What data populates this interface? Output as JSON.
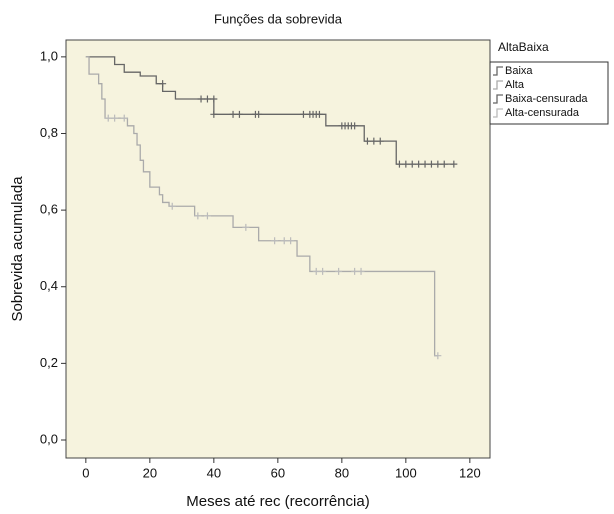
{
  "chart_data": {
    "type": "line",
    "title": "Funções da sobrevida",
    "x_label": "Meses até rec (recorrência)",
    "y_label": "Sobrevida acumulada",
    "legend_title": "AltaBaixa",
    "legend_position": "right",
    "xlim": [
      -6.2,
      126.3
    ],
    "ylim": [
      -0.047,
      1.044
    ],
    "xticks": [
      0,
      20,
      40,
      60,
      80,
      100,
      120
    ],
    "yticks": [
      {
        "value": 0,
        "label": "0,0"
      },
      {
        "value": 0.2,
        "label": "0,2"
      },
      {
        "value": 0.4,
        "label": "0,4"
      },
      {
        "value": 0.6,
        "label": "0,6"
      },
      {
        "value": 0.8,
        "label": "0,8"
      },
      {
        "value": 1,
        "label": "1,0"
      }
    ],
    "series": [
      {
        "name": "Baixa",
        "color": "#666666",
        "style": "step",
        "x": [
          0,
          9,
          12,
          17,
          22,
          24,
          28,
          40,
          75,
          87,
          97,
          115
        ],
        "values": [
          1,
          0.98,
          0.96,
          0.95,
          0.93,
          0.91,
          0.89,
          0.85,
          0.82,
          0.78,
          0.72,
          0.72
        ]
      },
      {
        "name": "Alta",
        "color": "#aaaaaa",
        "style": "step",
        "x": [
          0,
          1,
          4,
          5,
          6,
          13,
          15,
          16,
          17,
          18,
          20,
          23,
          24,
          26,
          34,
          46,
          54,
          66,
          70,
          109,
          110
        ],
        "values": [
          1,
          0.955,
          0.93,
          0.89,
          0.84,
          0.82,
          0.8,
          0.77,
          0.73,
          0.7,
          0.66,
          0.64,
          0.62,
          0.61,
          0.585,
          0.555,
          0.52,
          0.48,
          0.44,
          0.22,
          0.22
        ]
      },
      {
        "name": "Baixa-censurada",
        "color": "#666666",
        "style": "censored",
        "x": [
          24,
          36,
          38,
          40,
          40,
          46,
          48,
          53,
          54,
          68,
          70,
          71,
          72,
          73,
          80,
          81,
          82,
          83,
          84,
          88,
          90,
          92,
          98,
          100,
          102,
          104,
          106,
          108,
          110,
          112,
          115
        ],
        "values": [
          0.93,
          0.89,
          0.89,
          0.89,
          0.85,
          0.85,
          0.85,
          0.85,
          0.85,
          0.85,
          0.85,
          0.85,
          0.85,
          0.85,
          0.82,
          0.82,
          0.82,
          0.82,
          0.82,
          0.78,
          0.78,
          0.78,
          0.72,
          0.72,
          0.72,
          0.72,
          0.72,
          0.72,
          0.72,
          0.72,
          0.72
        ]
      },
      {
        "name": "Alta-censurada",
        "color": "#bbbbbb",
        "style": "censored",
        "x": [
          7,
          9,
          12,
          27,
          35,
          38,
          50,
          59,
          62,
          64,
          72,
          74,
          79,
          84,
          86,
          110
        ],
        "values": [
          0.84,
          0.84,
          0.84,
          0.61,
          0.585,
          0.585,
          0.555,
          0.52,
          0.52,
          0.52,
          0.44,
          0.44,
          0.44,
          0.44,
          0.44,
          0.22
        ]
      }
    ]
  }
}
